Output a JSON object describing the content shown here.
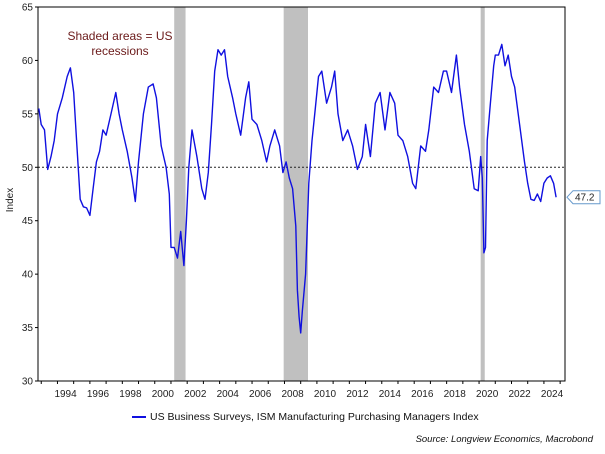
{
  "chart_data": {
    "type": "line",
    "ylabel": "Index",
    "ylim": [
      30,
      65
    ],
    "yticks": [
      30,
      35,
      40,
      45,
      50,
      55,
      60,
      65
    ],
    "xlim": [
      1992.8,
      2025.3
    ],
    "xticks": [
      "1994",
      "1996",
      "1998",
      "2000",
      "2002",
      "2004",
      "2006",
      "2008",
      "2010",
      "2012",
      "2014",
      "2016",
      "2018",
      "2020",
      "2022",
      "2024"
    ],
    "reference_line": 50,
    "annotation": "Shaded areas = US recessions",
    "last_value_label": "47.2",
    "recessions": [
      [
        2001.2,
        2001.9
      ],
      [
        2007.95,
        2009.45
      ],
      [
        2020.1,
        2020.35
      ]
    ],
    "legend": "US Business Surveys, ISM Manufacturing Purchasing Managers Index",
    "source": "Source: Longview Economics, Macrobond",
    "colors": {
      "line": "#1010e0",
      "recession": "#c0c0c0",
      "label_border": "#6699cc"
    },
    "series": [
      {
        "name": "US Business Surveys, ISM Manufacturing Purchasing Managers Index",
        "x": [
          1992.85,
          1993.0,
          1993.2,
          1993.4,
          1993.6,
          1993.8,
          1994.0,
          1994.3,
          1994.6,
          1994.8,
          1995.0,
          1995.2,
          1995.4,
          1995.6,
          1995.8,
          1996.0,
          1996.2,
          1996.4,
          1996.6,
          1996.8,
          1997.0,
          1997.3,
          1997.6,
          1997.8,
          1998.0,
          1998.3,
          1998.6,
          1998.8,
          1999.0,
          1999.3,
          1999.6,
          1999.9,
          2000.1,
          2000.4,
          2000.7,
          2000.9,
          2001.0,
          2001.2,
          2001.4,
          2001.6,
          2001.8,
          2001.95,
          2002.1,
          2002.3,
          2002.6,
          2002.9,
          2003.1,
          2003.3,
          2003.5,
          2003.7,
          2003.9,
          2004.1,
          2004.3,
          2004.5,
          2004.8,
          2005.0,
          2005.3,
          2005.6,
          2005.8,
          2006.0,
          2006.3,
          2006.6,
          2006.9,
          2007.1,
          2007.4,
          2007.7,
          2007.9,
          2008.1,
          2008.3,
          2008.5,
          2008.7,
          2008.8,
          2008.9,
          2009.0,
          2009.1,
          2009.3,
          2009.5,
          2009.7,
          2009.9,
          2010.1,
          2010.3,
          2010.6,
          2010.9,
          2011.1,
          2011.3,
          2011.6,
          2011.9,
          2012.2,
          2012.5,
          2012.8,
          2013.0,
          2013.3,
          2013.6,
          2013.9,
          2014.2,
          2014.5,
          2014.8,
          2015.0,
          2015.3,
          2015.6,
          2015.9,
          2016.1,
          2016.4,
          2016.7,
          2016.9,
          2017.2,
          2017.5,
          2017.8,
          2018.0,
          2018.3,
          2018.6,
          2018.8,
          2019.1,
          2019.4,
          2019.7,
          2019.95,
          2020.1,
          2020.2,
          2020.3,
          2020.4,
          2020.5,
          2020.7,
          2020.9,
          2021.0,
          2021.2,
          2021.4,
          2021.6,
          2021.8,
          2022.0,
          2022.2,
          2022.5,
          2022.8,
          2023.0,
          2023.2,
          2023.4,
          2023.6,
          2023.8,
          2024.0,
          2024.2,
          2024.4,
          2024.6,
          2024.75
        ],
        "values": [
          55.5,
          54.0,
          53.5,
          49.8,
          51.0,
          52.5,
          55.0,
          56.5,
          58.5,
          59.3,
          57.0,
          52.0,
          47.0,
          46.3,
          46.2,
          45.5,
          48.0,
          50.5,
          51.5,
          53.5,
          53.0,
          55.0,
          57.0,
          55.0,
          53.5,
          51.5,
          49.0,
          46.8,
          50.5,
          55.0,
          57.5,
          57.8,
          56.5,
          52.0,
          50.0,
          47.5,
          42.5,
          42.5,
          41.5,
          44.0,
          40.8,
          45.0,
          50.0,
          53.5,
          51.0,
          48.0,
          47.0,
          49.5,
          54.0,
          59.0,
          61.0,
          60.5,
          61.0,
          58.5,
          56.5,
          55.0,
          53.0,
          56.5,
          58.0,
          54.5,
          54.0,
          52.5,
          50.5,
          52.0,
          53.5,
          52.0,
          49.5,
          50.5,
          49.0,
          48.0,
          44.5,
          38.5,
          36.0,
          34.5,
          36.5,
          40.0,
          48.5,
          52.5,
          55.5,
          58.5,
          59.0,
          56.0,
          57.5,
          59.0,
          55.0,
          52.5,
          53.5,
          52.0,
          49.8,
          51.0,
          54.0,
          51.0,
          56.0,
          57.0,
          53.5,
          57.0,
          56.0,
          53.0,
          52.5,
          51.0,
          48.5,
          48.0,
          52.0,
          51.5,
          53.5,
          57.5,
          57.0,
          59.0,
          59.0,
          57.0,
          60.5,
          57.5,
          54.0,
          51.5,
          48.0,
          47.8,
          51.0,
          49.0,
          42.0,
          42.5,
          52.5,
          56.0,
          59.5,
          60.5,
          60.5,
          61.5,
          59.5,
          60.5,
          58.5,
          57.5,
          54.0,
          50.5,
          48.5,
          47.0,
          46.9,
          47.5,
          46.8,
          48.5,
          49.0,
          49.2,
          48.5,
          47.2
        ]
      }
    ]
  }
}
